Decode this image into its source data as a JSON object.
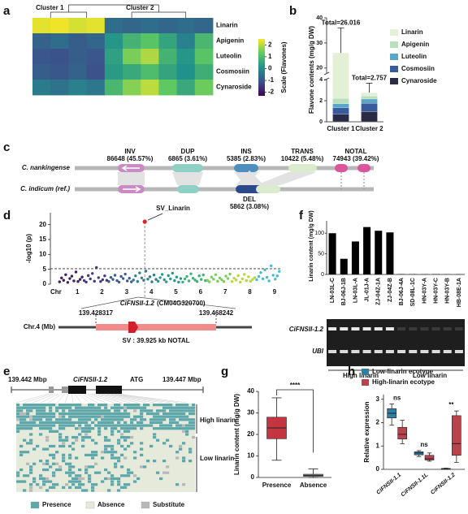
{
  "panel_labels": [
    "a",
    "b",
    "c",
    "d",
    "e",
    "f",
    "g",
    "h"
  ],
  "chart_data": [
    {
      "type": "heatmap",
      "rows": [
        "Linarin",
        "Apigenin",
        "Luteolin",
        "Cosmosiin",
        "Cynaroside"
      ],
      "clusters": [
        {
          "name": "Cluster 1",
          "values": [
            [
              2.3,
              2.4,
              2.2,
              2.3
            ],
            [
              -0.8,
              -0.6,
              -0.9,
              -0.7
            ],
            [
              -1.0,
              -1.1,
              -0.9,
              -1.0
            ],
            [
              -0.9,
              -1.0,
              -0.8,
              -1.1
            ],
            [
              -0.3,
              -0.5,
              -0.2,
              -0.4
            ]
          ]
        },
        {
          "name": "Cluster 2",
          "values": [
            [
              -0.6,
              -0.7,
              -0.6,
              -0.7,
              -0.6,
              -0.7
            ],
            [
              0.2,
              0.8,
              1.2,
              0.5,
              -0.2,
              0.9
            ],
            [
              0.4,
              1.5,
              1.9,
              0.8,
              0.2,
              1.2
            ],
            [
              0.3,
              0.6,
              1.0,
              0.5,
              0.1,
              0.7
            ],
            [
              0.9,
              1.6,
              2.0,
              1.3,
              0.6,
              1.4
            ]
          ]
        }
      ],
      "colorbar_label": "Scale (Flavones)",
      "color_lim": [
        -2.3,
        2.5
      ],
      "colorbar_ticks": [
        2,
        1,
        0,
        -1,
        -2
      ]
    },
    {
      "type": "bar",
      "stacked": true,
      "categories": [
        "Cluster 1",
        "Cluster 2"
      ],
      "ylabel": "Flavone contents (mg/g DW)",
      "ylim_segments": [
        [
          0,
          4
        ],
        [
          18,
          40
        ]
      ],
      "yticks": [
        0,
        2,
        4,
        20,
        30,
        40
      ],
      "series": [
        {
          "name": "Linarin",
          "color": "#e3f0d6",
          "values": [
            23.8,
            0.3
          ]
        },
        {
          "name": "Apigenin",
          "color": "#b9e0bd",
          "values": [
            0.5,
            0.3
          ]
        },
        {
          "name": "Luteolin",
          "color": "#5aa6c8",
          "values": [
            0.4,
            0.4
          ]
        },
        {
          "name": "Cosmosiin",
          "color": "#3a5b9b",
          "values": [
            0.6,
            0.8
          ]
        },
        {
          "name": "Cynaroside",
          "color": "#2a2b45",
          "values": [
            0.716,
            0.957
          ]
        }
      ],
      "totals": [
        {
          "value": 26.016,
          "label": "Total=26.016"
        },
        {
          "value": 2.757,
          "label": "Total=2.757"
        }
      ],
      "errors": [
        10,
        0.9
      ]
    },
    {
      "type": "scatter",
      "ylabel": "-log10 (p)",
      "xlabel": "Chr",
      "ylim": [
        0,
        24
      ],
      "yticks": [
        0,
        5,
        10,
        15,
        20
      ],
      "threshold": 5.2,
      "chromosomes": [
        {
          "label": "1",
          "color": "#3b1f5f",
          "values": [
            0.8,
            2.1,
            1.3,
            3.2,
            0.6,
            1.9,
            2.7,
            1.1,
            4.1,
            0.9,
            1.6,
            2.4
          ]
        },
        {
          "label": "2",
          "color": "#3f3a80",
          "values": [
            1.2,
            0.7,
            2.9,
            1.8,
            3.6,
            1.0,
            5.6,
            2.2,
            0.9,
            1.5,
            2.8,
            1.3
          ]
        },
        {
          "label": "3",
          "color": "#3a5c8e",
          "values": [
            0.9,
            2.3,
            1.6,
            3.0,
            1.2,
            0.7,
            2.6,
            1.9,
            3.4,
            1.1,
            2.0,
            0.8
          ]
        },
        {
          "label": "4",
          "color": "#2c7f8e",
          "values": [
            1.4,
            2.8,
            0.9,
            3.8,
            2.1,
            1.3,
            4.4,
            1.7,
            2.5,
            0.8,
            3.1,
            1.6
          ],
          "peak": {
            "label": "SV_Linarin",
            "value": 21
          }
        },
        {
          "label": "5",
          "color": "#24998a",
          "values": [
            1.0,
            2.2,
            3.3,
            1.5,
            0.8,
            2.9,
            1.8,
            3.7,
            1.2,
            2.4,
            0.7,
            1.9
          ]
        },
        {
          "label": "6",
          "color": "#3cb476",
          "values": [
            0.7,
            1.8,
            2.6,
            1.1,
            3.5,
            2.0,
            1.4,
            0.9,
            2.8,
            1.6,
            3.1,
            1.2
          ]
        },
        {
          "label": "7",
          "color": "#7ccc5a",
          "values": [
            1.3,
            0.8,
            2.4,
            1.7,
            3.2,
            1.0,
            2.1,
            1.5,
            0.9,
            2.7,
            1.9,
            3.4
          ]
        },
        {
          "label": "8",
          "color": "#b5d83c",
          "values": [
            0.9,
            2.0,
            1.4,
            2.9,
            0.7,
            1.8,
            3.3,
            1.2,
            2.5,
            1.0,
            1.6,
            2.2
          ]
        },
        {
          "label": "9",
          "color": "#3ec1d3",
          "values": [
            1.5,
            2.6,
            3.9,
            1.8,
            4.8,
            2.3,
            1.1,
            6.2,
            3.0,
            1.7,
            2.8,
            4.3
          ]
        }
      ]
    },
    {
      "type": "bar",
      "ylabel": "Linarin content (mg/g DW)",
      "categories": [
        "LN-03L-C",
        "BJ-06J-1B",
        "LN-03L-A",
        "JL-01J-A",
        "ZJ-04Z-1A",
        "ZJ-04Z-B",
        "BJ-06J-4A",
        "SD-08L-1C",
        "HN-03Y-A",
        "HN-03Y-C",
        "HN-03Y-B",
        "HB-08E-1A"
      ],
      "values": [
        100,
        38,
        80,
        115,
        106,
        102,
        0.8,
        0.6,
        0.5,
        0.7,
        0.4,
        0.5
      ],
      "color": "#000000",
      "ylim": [
        0,
        130
      ],
      "yticks": [
        0,
        50,
        100
      ]
    },
    {
      "type": "box",
      "ylabel": "Linarin content (mg/g DW)",
      "categories": [
        "Presence",
        "Absence"
      ],
      "colors": [
        "#c4353f",
        "#9a9a9a"
      ],
      "boxes": [
        {
          "min": 8,
          "q1": 18,
          "median": 23,
          "q3": 28,
          "max": 37
        },
        {
          "min": 0,
          "q1": 0.5,
          "median": 1,
          "q3": 1.5,
          "max": 4
        }
      ],
      "ylim": [
        0,
        40
      ],
      "yticks": [
        0,
        10,
        20,
        30,
        40
      ],
      "significance": "****"
    },
    {
      "type": "box",
      "ylabel": "Relative expression",
      "categories": [
        "CiFNSII-1.1",
        "CiFNSII-1.1L",
        "CiFNSII-1.2"
      ],
      "series": [
        {
          "name": "Low-linarin ecotype",
          "color": "#2f7fa5",
          "boxes": [
            {
              "min": 1.9,
              "q1": 2.2,
              "median": 2.4,
              "q3": 2.6,
              "max": 2.8
            },
            {
              "min": 0.55,
              "q1": 0.62,
              "median": 0.7,
              "q3": 0.75,
              "max": 0.8
            },
            {
              "min": 0,
              "q1": 0,
              "median": 0.02,
              "q3": 0.04,
              "max": 0.05
            }
          ]
        },
        {
          "name": "High-linarin ecotype",
          "color": "#b8434c",
          "boxes": [
            {
              "min": 1.1,
              "q1": 1.3,
              "median": 1.5,
              "q3": 1.8,
              "max": 2.1
            },
            {
              "min": 0.35,
              "q1": 0.4,
              "median": 0.45,
              "q3": 0.6,
              "max": 0.7
            },
            {
              "min": 0.3,
              "q1": 0.6,
              "median": 1.1,
              "q3": 2.3,
              "max": 2.5
            }
          ]
        }
      ],
      "ylim": [
        0,
        3.2
      ],
      "yticks": [
        0,
        1,
        2,
        3
      ],
      "significance": [
        "ns",
        "ns",
        "**"
      ]
    }
  ],
  "sv_diagram": {
    "genomes": [
      "C. nankingense",
      "C. indicum (ref.)"
    ],
    "types": [
      {
        "name": "INV",
        "label": "86648 (45.57%)"
      },
      {
        "name": "DUP",
        "label": "6865 (3.61%)"
      },
      {
        "name": "INS",
        "label": "5385 (2.83%)"
      },
      {
        "name": "TRANS",
        "label": "10422 (5.48%)"
      },
      {
        "name": "NOTAL",
        "label": "74943 (39.42%)"
      },
      {
        "name": "DEL",
        "label": "5862 (3.08%)"
      }
    ]
  },
  "gene_model": {
    "start": "139.428317",
    "end": "139.468242",
    "gene": "CiFNSII-1.2",
    "gene_id": "(CM04G320700)",
    "axis": "Chr.4 (Mb)",
    "sv": "SV : 39.925 kb NOTAL"
  },
  "haplotype": {
    "start": "139.442 Mbp",
    "end": "139.447 Mbp",
    "gene": "CiFNSII-1.2",
    "atg": "ATG",
    "groups": [
      "High linarin",
      "Low linarin"
    ],
    "legend": [
      {
        "name": "Presence",
        "color": "#5ea7ab"
      },
      {
        "name": "Absence",
        "color": "#e5eadb"
      },
      {
        "name": "Substitute",
        "color": "#b8b8b8"
      }
    ]
  },
  "gel": {
    "bands": [
      "CiFNSII-1.2",
      "UBI"
    ],
    "groups": [
      "High linarin",
      "Low linarin"
    ]
  }
}
